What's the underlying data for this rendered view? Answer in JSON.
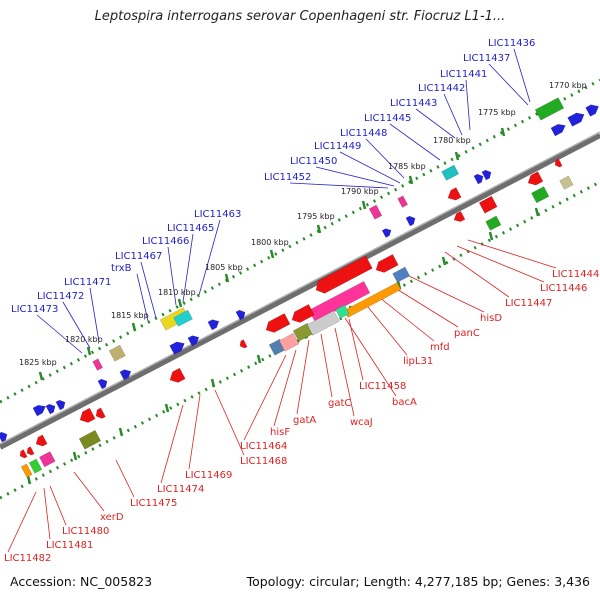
{
  "title": "Leptospira interrogans serovar Copenhageni str. Fiocruz L1-1...",
  "accession": "Accession: NC_005823",
  "summary": "Topology: circular; Length: 4,277,185 bp; Genes: 3,436",
  "colors": {
    "upper": "#2222cc",
    "lower": "#dd2222",
    "backbone": "#808080",
    "ticks": "#2a8a2a"
  },
  "kbp_labels": [
    "1770 kbp",
    "1775 kbp",
    "1780 kbp",
    "1785 kbp",
    "1790 kbp",
    "1795 kbp",
    "1800 kbp",
    "1805 kbp",
    "1810 kbp",
    "1815 kbp",
    "1820 kbp",
    "1825 kbp"
  ],
  "upper_labels": [
    "LIC11436",
    "LIC11437",
    "LIC11441",
    "LIC11442",
    "LIC11443",
    "LIC11445",
    "LIC11448",
    "LIC11449",
    "LIC11450",
    "LIC11452",
    "LIC11463",
    "LIC11465",
    "LIC11466",
    "LIC11467",
    "trxB",
    "LIC11471",
    "LIC11472",
    "LIC11473"
  ],
  "lower_labels": [
    "LIC11444",
    "LIC11446",
    "LIC11447",
    "hisD",
    "panC",
    "mfd",
    "lipL31",
    "LIC11458",
    "bacA",
    "wcaJ",
    "gatC",
    "gatA",
    "hisF",
    "LIC11464",
    "LIC11468",
    "LIC11469",
    "LIC11474",
    "LIC11475",
    "xerD",
    "LIC11480",
    "LIC11481",
    "LIC11482"
  ]
}
